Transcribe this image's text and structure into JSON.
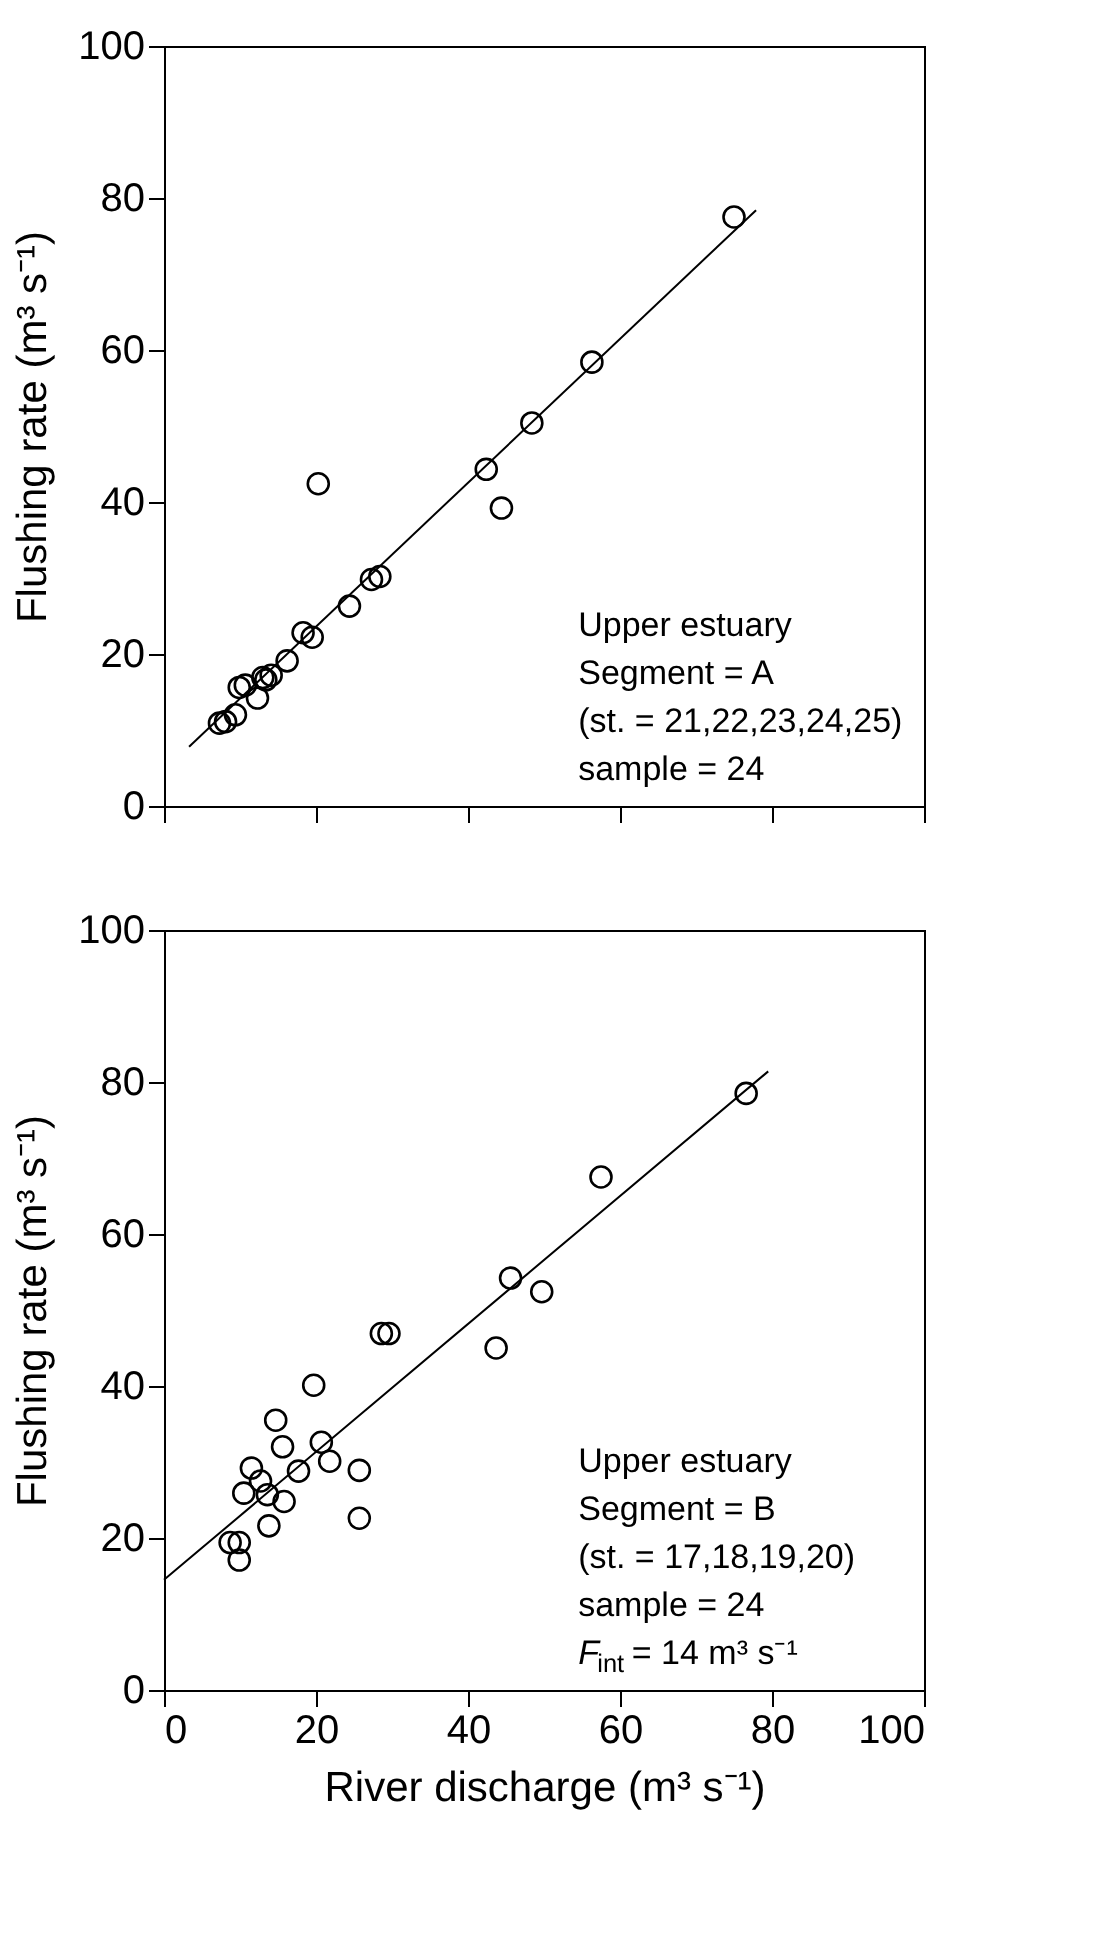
{
  "chart_data": [
    {
      "type": "scatter",
      "ylabel": "Flushing rate (m³ s⁻¹)",
      "xlim": [
        0,
        100
      ],
      "xticks": [
        0,
        20,
        40,
        60,
        80,
        100
      ],
      "ylim": [
        0,
        100
      ],
      "yticks": [
        0,
        20,
        40,
        60,
        80,
        100
      ],
      "tick_labels": "y",
      "grid": false,
      "annotations": [
        "Upper estuary",
        "Segment = A",
        "(st. = 21,22,23,24,25)",
        "sample = 24"
      ],
      "series": [
        {
          "marker": "circle",
          "color": "#000000",
          "x": [
            75.0,
            56.3,
            48.4,
            42.4,
            44.4,
            20.3,
            28.4,
            27.3,
            24.4,
            18.3,
            19.5,
            16.2,
            14.1,
            13.4,
            12.3,
            9.9,
            10.7,
            9.4,
            8.1,
            7.3,
            13.0
          ],
          "values": [
            77.5,
            58.4,
            50.4,
            44.3,
            39.2,
            42.4,
            30.2,
            29.8,
            26.3,
            22.8,
            22.2,
            19.1,
            17.2,
            16.6,
            14.2,
            15.6,
            15.9,
            12.0,
            11.1,
            10.9,
            16.9
          ]
        },
        {
          "type": "line",
          "marker": "none",
          "color": "#000000",
          "line_style": "solid",
          "x": [
            3.3,
            77.9
          ],
          "values": [
            7.8,
            78.4
          ]
        }
      ]
    },
    {
      "type": "scatter",
      "xlabel": "River discharge (m³ s⁻¹)",
      "ylabel": "Flushing rate (m³ s⁻¹)",
      "xlim": [
        0,
        100
      ],
      "xticks": [
        0,
        20,
        40,
        60,
        80,
        100
      ],
      "ylim": [
        0,
        100
      ],
      "yticks": [
        0,
        20,
        40,
        60,
        80,
        100
      ],
      "grid": false,
      "annotations": [
        "Upper estuary",
        "Segment = B",
        "(st. = 17,18,19,20)",
        "sample = 24",
        "F$_{int}$ = 14 m³ s⁻¹"
      ],
      "series": [
        {
          "marker": "circle",
          "color": "#000000",
          "x": [
            76.6,
            57.5,
            45.6,
            49.7,
            43.7,
            28.6,
            29.6,
            19.7,
            14.7,
            15.6,
            20.7,
            21.8,
            25.7,
            17.7,
            11.5,
            12.7,
            10.5,
            13.6,
            15.8,
            25.7,
            13.8,
            8.7,
            9.9,
            9.9
          ],
          "values": [
            78.5,
            67.5,
            54.2,
            52.4,
            45.0,
            46.9,
            46.9,
            40.1,
            35.5,
            32.0,
            32.6,
            30.1,
            28.9,
            28.8,
            29.2,
            27.5,
            25.9,
            25.7,
            24.8,
            22.6,
            21.6,
            19.4,
            19.4,
            17.1
          ]
        },
        {
          "type": "line",
          "marker": "none",
          "color": "#000000",
          "line_style": "solid",
          "x": [
            0,
            79.5
          ],
          "values": [
            14.5,
            81.4
          ]
        }
      ]
    }
  ]
}
